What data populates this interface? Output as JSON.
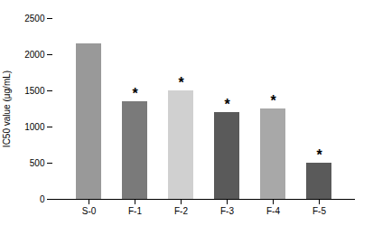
{
  "chart_data": {
    "type": "bar",
    "categories": [
      "S-0",
      "F-1",
      "F-2",
      "F-3",
      "F-4",
      "F-5"
    ],
    "values": [
      2150,
      1350,
      1500,
      1200,
      1250,
      500
    ],
    "colors": [
      "#999999",
      "#7a7a7a",
      "#d0d0d0",
      "#5a5a5a",
      "#a8a8a8",
      "#5a5a5a"
    ],
    "ylabel": "IC50 value (μg/mL)",
    "ylim": [
      0,
      2500
    ],
    "yticks": [
      0,
      500,
      1000,
      1500,
      2000,
      2500
    ],
    "grid": false,
    "annotations": [
      {
        "category": "F-1",
        "text": "*"
      },
      {
        "category": "F-2",
        "text": "*"
      },
      {
        "category": "F-3",
        "text": "*"
      },
      {
        "category": "F-4",
        "text": "*"
      },
      {
        "category": "F-5",
        "text": "*"
      }
    ]
  }
}
